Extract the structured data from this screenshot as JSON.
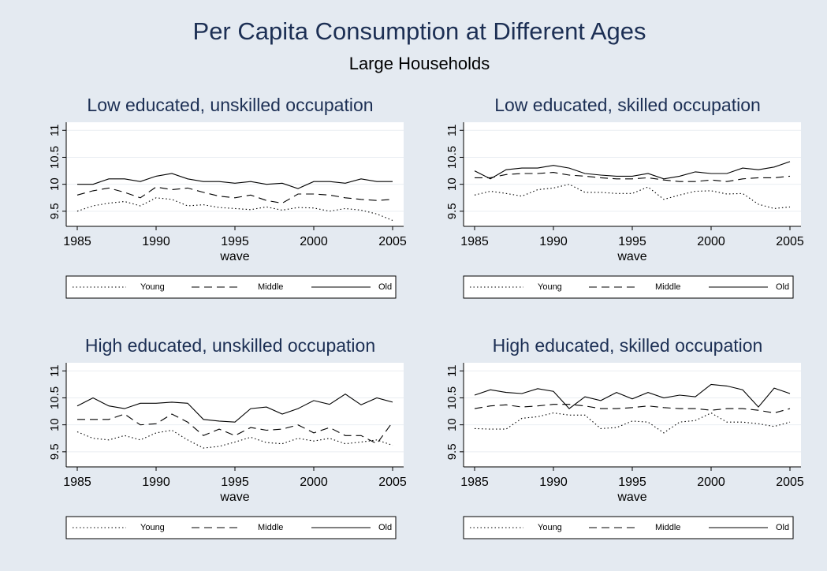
{
  "title": "Per Capita Consumption at Different Ages",
  "subtitle": "Large Households",
  "chart_data": [
    {
      "type": "line",
      "title": "Low educated, unskilled occupation",
      "xlabel": "wave",
      "x": [
        1985,
        1986,
        1987,
        1988,
        1989,
        1990,
        1991,
        1992,
        1993,
        1994,
        1995,
        1996,
        1997,
        1998,
        1999,
        2000,
        2001,
        2002,
        2003,
        2004,
        2005
      ],
      "xlim": [
        1984.3,
        2005.7
      ],
      "xticks": [
        1985,
        1990,
        1995,
        2000,
        2005
      ],
      "ylim": [
        9.22,
        11.15
      ],
      "yticks": [
        9.5,
        10,
        10.5,
        11
      ],
      "grid": true,
      "series": [
        {
          "name": "Young",
          "color": "#000000",
          "dash": "dotted",
          "values": [
            9.5,
            9.6,
            9.65,
            9.68,
            9.6,
            9.75,
            9.72,
            9.6,
            9.62,
            9.57,
            9.55,
            9.53,
            9.58,
            9.52,
            9.57,
            9.56,
            9.5,
            9.55,
            9.52,
            9.45,
            9.33
          ]
        },
        {
          "name": "Middle",
          "color": "#000000",
          "dash": "dashed",
          "values": [
            9.8,
            9.88,
            9.93,
            9.85,
            9.75,
            9.95,
            9.9,
            9.93,
            9.85,
            9.78,
            9.75,
            9.8,
            9.7,
            9.65,
            9.82,
            9.82,
            9.8,
            9.75,
            9.72,
            9.7,
            9.72
          ]
        },
        {
          "name": "Old",
          "color": "#000000",
          "dash": "solid",
          "values": [
            10.0,
            10.0,
            10.1,
            10.1,
            10.05,
            10.15,
            10.2,
            10.1,
            10.05,
            10.05,
            10.02,
            10.05,
            10.0,
            10.02,
            9.92,
            10.05,
            10.05,
            10.02,
            10.1,
            10.05,
            10.05
          ]
        }
      ]
    },
    {
      "type": "line",
      "title": "Low educated, skilled occupation",
      "xlabel": "wave",
      "x": [
        1985,
        1986,
        1987,
        1988,
        1989,
        1990,
        1991,
        1992,
        1993,
        1994,
        1995,
        1996,
        1997,
        1998,
        1999,
        2000,
        2001,
        2002,
        2003,
        2004,
        2005
      ],
      "xlim": [
        1984.3,
        2005.7
      ],
      "xticks": [
        1985,
        1990,
        1995,
        2000,
        2005
      ],
      "ylim": [
        9.22,
        11.15
      ],
      "yticks": [
        9.5,
        10,
        10.5,
        11
      ],
      "grid": true,
      "series": [
        {
          "name": "Young",
          "color": "#000000",
          "dash": "dotted",
          "values": [
            9.8,
            9.87,
            9.83,
            9.78,
            9.9,
            9.93,
            10.0,
            9.85,
            9.85,
            9.83,
            9.83,
            9.95,
            9.72,
            9.8,
            9.87,
            9.88,
            9.82,
            9.83,
            9.63,
            9.55,
            9.58
          ]
        },
        {
          "name": "Middle",
          "color": "#000000",
          "dash": "dashed",
          "values": [
            10.12,
            10.12,
            10.18,
            10.2,
            10.2,
            10.22,
            10.17,
            10.15,
            10.12,
            10.1,
            10.1,
            10.12,
            10.08,
            10.05,
            10.05,
            10.08,
            10.05,
            10.1,
            10.12,
            10.12,
            10.15
          ]
        },
        {
          "name": "Old",
          "color": "#000000",
          "dash": "solid",
          "values": [
            10.25,
            10.1,
            10.27,
            10.3,
            10.3,
            10.35,
            10.3,
            10.2,
            10.17,
            10.15,
            10.15,
            10.2,
            10.1,
            10.15,
            10.23,
            10.2,
            10.2,
            10.3,
            10.27,
            10.32,
            10.42
          ]
        }
      ]
    },
    {
      "type": "line",
      "title": "High educated, unskilled occupation",
      "xlabel": "wave",
      "x": [
        1985,
        1986,
        1987,
        1988,
        1989,
        1990,
        1991,
        1992,
        1993,
        1994,
        1995,
        1996,
        1997,
        1998,
        1999,
        2000,
        2001,
        2002,
        2003,
        2004,
        2005
      ],
      "xlim": [
        1984.3,
        2005.7
      ],
      "xticks": [
        1985,
        1990,
        1995,
        2000,
        2005
      ],
      "ylim": [
        9.22,
        11.15
      ],
      "yticks": [
        9.5,
        10,
        10.5,
        11
      ],
      "grid": true,
      "series": [
        {
          "name": "Young",
          "color": "#000000",
          "dash": "dotted",
          "values": [
            9.87,
            9.75,
            9.72,
            9.8,
            9.72,
            9.85,
            9.9,
            9.72,
            9.57,
            9.6,
            9.68,
            9.77,
            9.67,
            9.65,
            9.75,
            9.7,
            9.75,
            9.65,
            9.68,
            9.72,
            9.62
          ]
        },
        {
          "name": "Middle",
          "color": "#000000",
          "dash": "dashed",
          "values": [
            10.1,
            10.1,
            10.1,
            10.2,
            10.0,
            10.02,
            10.2,
            10.05,
            9.8,
            9.92,
            9.8,
            9.95,
            9.9,
            9.92,
            10.0,
            9.85,
            9.95,
            9.8,
            9.8,
            9.65,
            10.05
          ]
        },
        {
          "name": "Old",
          "color": "#000000",
          "dash": "solid",
          "values": [
            10.35,
            10.5,
            10.35,
            10.3,
            10.4,
            10.4,
            10.42,
            10.4,
            10.1,
            10.07,
            10.05,
            10.3,
            10.33,
            10.2,
            10.3,
            10.45,
            10.38,
            10.57,
            10.37,
            10.5,
            10.42
          ]
        }
      ]
    },
    {
      "type": "line",
      "title": "High educated, skilled occupation",
      "xlabel": "wave",
      "x": [
        1985,
        1986,
        1987,
        1988,
        1989,
        1990,
        1991,
        1992,
        1993,
        1994,
        1995,
        1996,
        1997,
        1998,
        1999,
        2000,
        2001,
        2002,
        2003,
        2004,
        2005
      ],
      "xlim": [
        1984.3,
        2005.7
      ],
      "xticks": [
        1985,
        1990,
        1995,
        2000,
        2005
      ],
      "ylim": [
        9.22,
        11.15
      ],
      "yticks": [
        9.5,
        10,
        10.5,
        11
      ],
      "grid": true,
      "series": [
        {
          "name": "Young",
          "color": "#000000",
          "dash": "dotted",
          "values": [
            9.93,
            9.92,
            9.92,
            10.12,
            10.15,
            10.22,
            10.18,
            10.18,
            9.93,
            9.95,
            10.07,
            10.05,
            9.85,
            10.05,
            10.08,
            10.22,
            10.05,
            10.05,
            10.02,
            9.97,
            10.05
          ]
        },
        {
          "name": "Middle",
          "color": "#000000",
          "dash": "dashed",
          "values": [
            10.3,
            10.35,
            10.37,
            10.33,
            10.35,
            10.38,
            10.38,
            10.35,
            10.3,
            10.3,
            10.32,
            10.35,
            10.32,
            10.3,
            10.3,
            10.27,
            10.3,
            10.3,
            10.27,
            10.22,
            10.3
          ]
        },
        {
          "name": "Old",
          "color": "#000000",
          "dash": "solid",
          "values": [
            10.55,
            10.65,
            10.6,
            10.58,
            10.67,
            10.62,
            10.3,
            10.52,
            10.45,
            10.6,
            10.48,
            10.6,
            10.5,
            10.55,
            10.52,
            10.75,
            10.72,
            10.65,
            10.33,
            10.68,
            10.58
          ]
        }
      ]
    }
  ]
}
